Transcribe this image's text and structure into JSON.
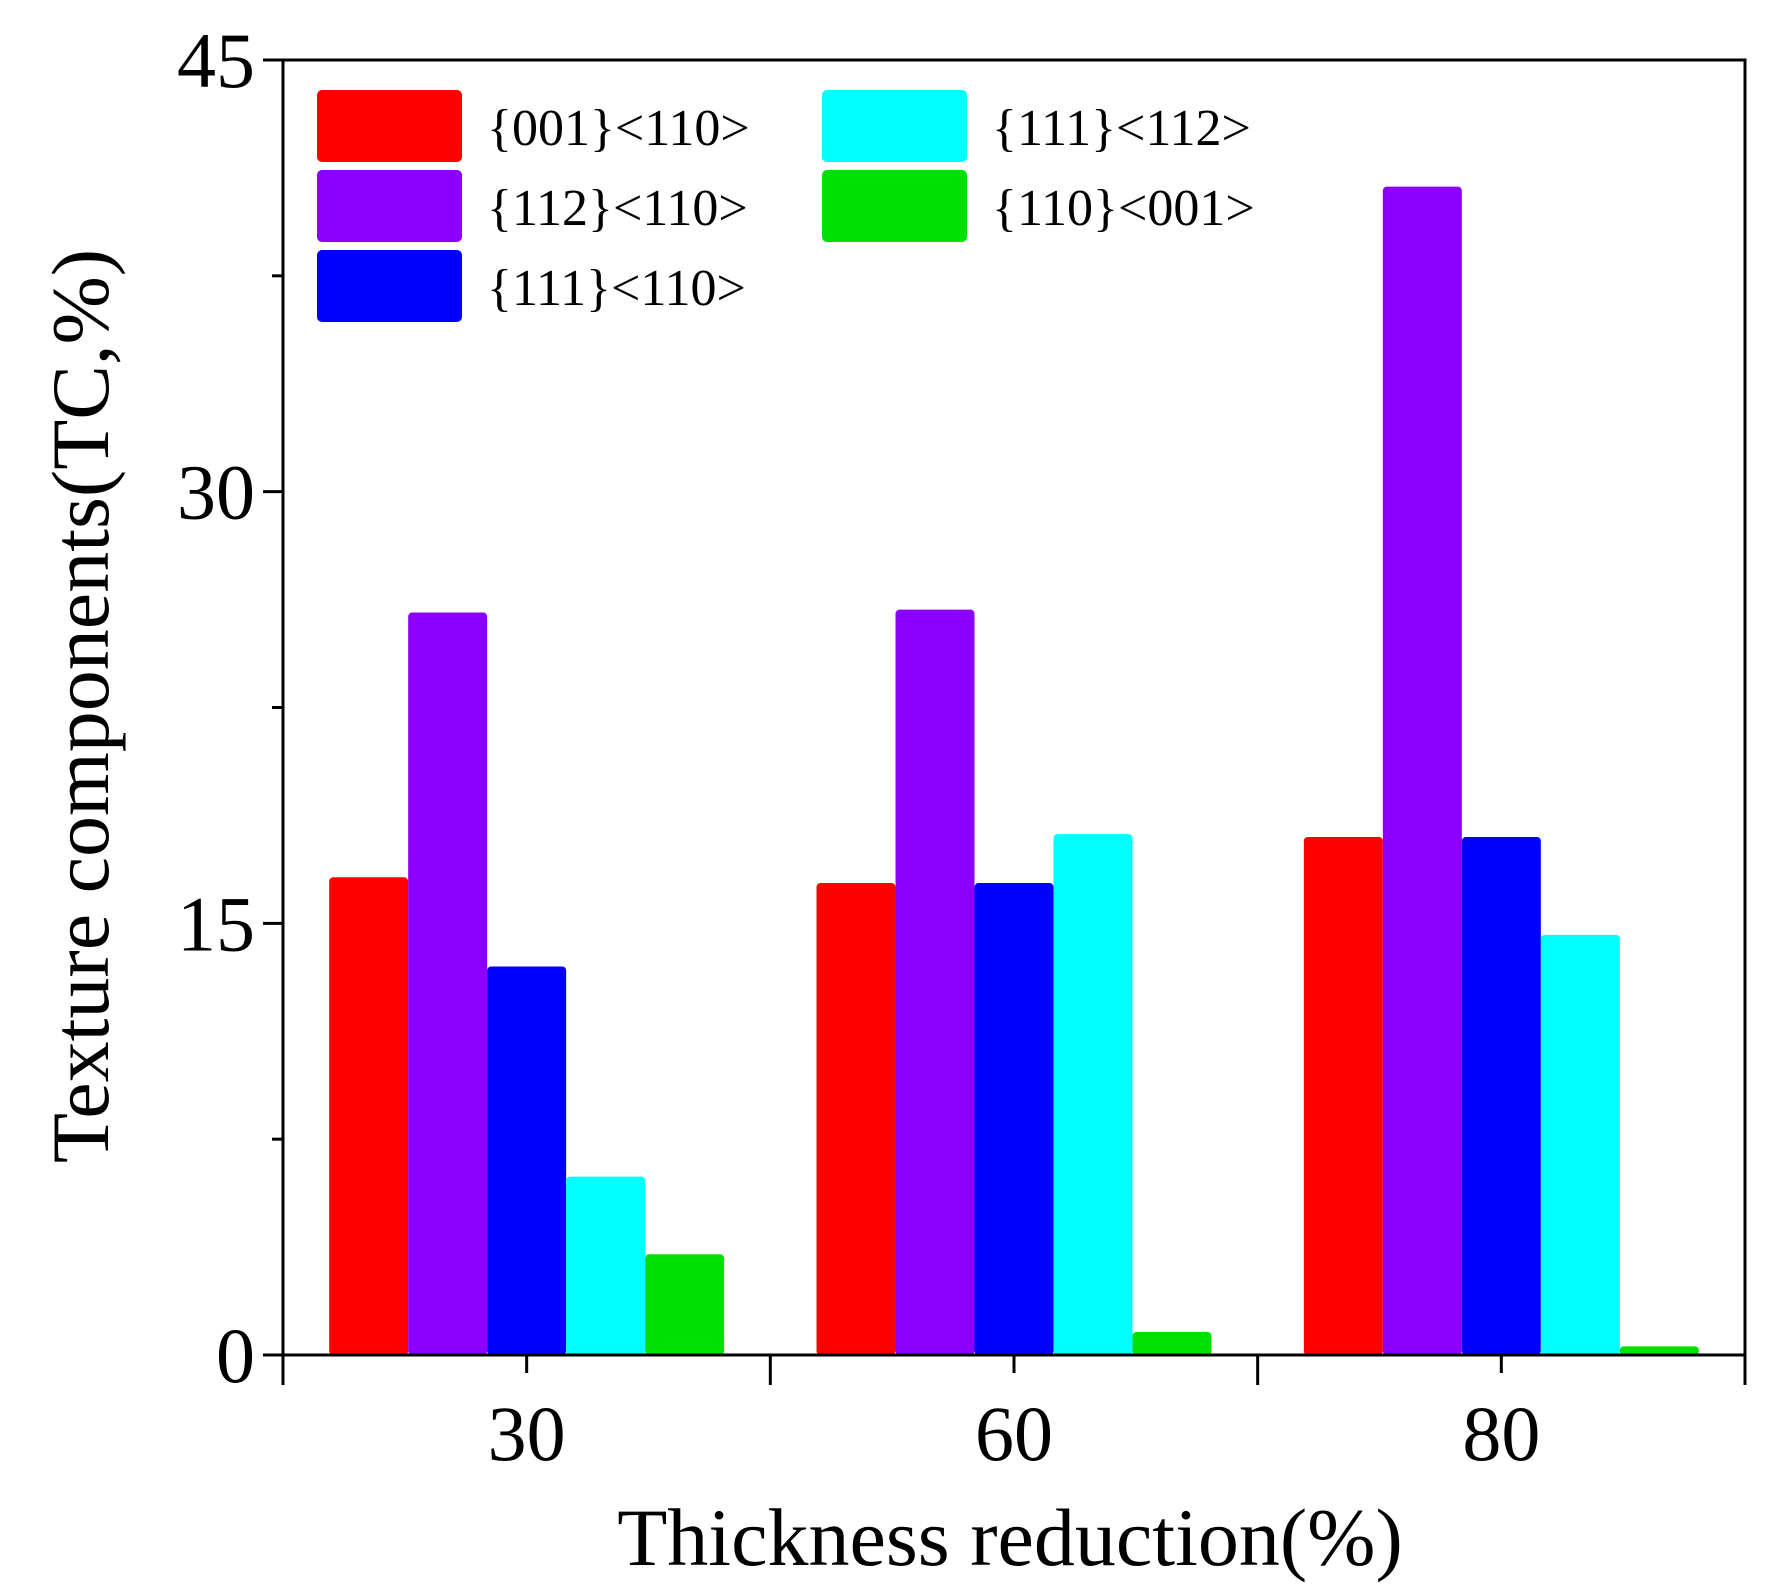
{
  "chart_data": {
    "type": "bar",
    "title": "",
    "xlabel": "Thickness reduction(%)",
    "ylabel": "Texture components(TC,%)",
    "categories": [
      "30",
      "60",
      "80"
    ],
    "ylim": [
      0,
      45
    ],
    "yticks": [
      "0",
      "15",
      "30",
      "45"
    ],
    "grid": false,
    "legend_position": "top-left",
    "series": [
      {
        "name": "{001}<110>",
        "color": "#ff0000",
        "values": [
          16.6,
          16.4,
          18.0
        ]
      },
      {
        "name": "{112}<110>",
        "color": "#8c00ff",
        "values": [
          25.8,
          25.9,
          40.6
        ]
      },
      {
        "name": "{111}<110>",
        "color": "#0000ff",
        "values": [
          13.5,
          16.4,
          18.0
        ]
      },
      {
        "name": "{111}<112>",
        "color": "#00ffff",
        "values": [
          6.2,
          18.1,
          14.6
        ]
      },
      {
        "name": "{110}<001>",
        "color": "#00e000",
        "values": [
          3.5,
          0.8,
          0.3
        ]
      }
    ]
  }
}
